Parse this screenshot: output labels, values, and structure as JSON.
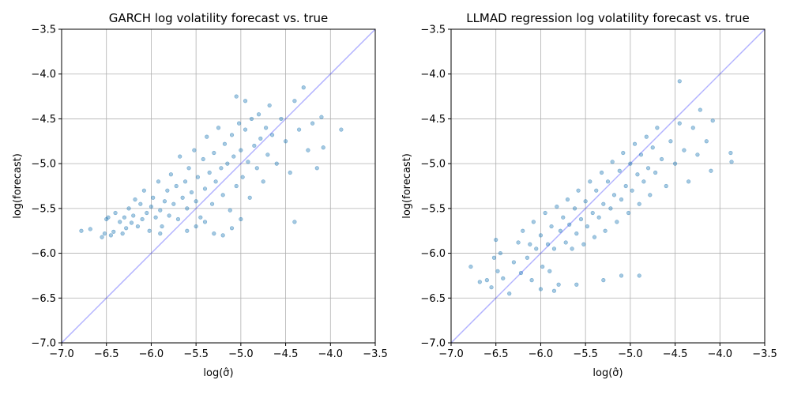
{
  "chart_data": [
    {
      "type": "scatter",
      "title": "GARCH log volatility forecast vs. true",
      "xlabel": "log(σ̂)",
      "ylabel": "log(forecast)",
      "xlim": [
        -7.0,
        -3.5
      ],
      "ylim": [
        -7.0,
        -3.5
      ],
      "xticks": [
        "−7.0",
        "−6.5",
        "−6.0",
        "−5.5",
        "−5.0",
        "−4.5",
        "−4.0",
        "−3.5"
      ],
      "yticks": [
        "−7.0",
        "−6.5",
        "−6.0",
        "−5.5",
        "−5.0",
        "−4.5",
        "−4.0",
        "−3.5"
      ],
      "grid": true,
      "reference_line": "y = x",
      "colors": {
        "points": "#1f77b4",
        "reference_line": "#0000ff"
      },
      "series": [
        {
          "points": [
            [
              -6.78,
              -5.75
            ],
            [
              -6.68,
              -5.73
            ],
            [
              -6.55,
              -5.82
            ],
            [
              -6.52,
              -5.78
            ],
            [
              -6.5,
              -5.62
            ],
            [
              -6.48,
              -5.6
            ],
            [
              -6.45,
              -5.8
            ],
            [
              -6.42,
              -5.76
            ],
            [
              -6.4,
              -5.55
            ],
            [
              -6.35,
              -5.65
            ],
            [
              -6.32,
              -5.78
            ],
            [
              -6.3,
              -5.6
            ],
            [
              -6.28,
              -5.72
            ],
            [
              -6.25,
              -5.5
            ],
            [
              -6.22,
              -5.66
            ],
            [
              -6.2,
              -5.58
            ],
            [
              -6.18,
              -5.4
            ],
            [
              -6.15,
              -5.7
            ],
            [
              -6.12,
              -5.45
            ],
            [
              -6.1,
              -5.62
            ],
            [
              -6.08,
              -5.3
            ],
            [
              -6.05,
              -5.55
            ],
            [
              -6.02,
              -5.75
            ],
            [
              -6.0,
              -5.48
            ],
            [
              -5.98,
              -5.38
            ],
            [
              -5.95,
              -5.6
            ],
            [
              -5.92,
              -5.2
            ],
            [
              -5.9,
              -5.52
            ],
            [
              -5.88,
              -5.7
            ],
            [
              -5.85,
              -5.42
            ],
            [
              -5.82,
              -5.3
            ],
            [
              -5.8,
              -5.58
            ],
            [
              -5.78,
              -5.12
            ],
            [
              -5.75,
              -5.45
            ],
            [
              -5.72,
              -5.25
            ],
            [
              -5.7,
              -5.62
            ],
            [
              -5.68,
              -4.92
            ],
            [
              -5.65,
              -5.38
            ],
            [
              -5.62,
              -5.2
            ],
            [
              -5.6,
              -5.5
            ],
            [
              -5.58,
              -5.05
            ],
            [
              -5.55,
              -5.32
            ],
            [
              -5.52,
              -4.85
            ],
            [
              -5.5,
              -5.42
            ],
            [
              -5.48,
              -5.15
            ],
            [
              -5.45,
              -5.6
            ],
            [
              -5.42,
              -4.95
            ],
            [
              -5.4,
              -5.28
            ],
            [
              -5.38,
              -4.7
            ],
            [
              -5.35,
              -5.1
            ],
            [
              -5.32,
              -5.45
            ],
            [
              -5.3,
              -4.88
            ],
            [
              -5.28,
              -5.2
            ],
            [
              -5.25,
              -4.6
            ],
            [
              -5.22,
              -5.05
            ],
            [
              -5.2,
              -5.35
            ],
            [
              -5.18,
              -4.78
            ],
            [
              -5.15,
              -5.0
            ],
            [
              -5.12,
              -5.52
            ],
            [
              -5.1,
              -4.68
            ],
            [
              -5.08,
              -4.92
            ],
            [
              -5.05,
              -5.25
            ],
            [
              -5.02,
              -4.55
            ],
            [
              -5.0,
              -4.85
            ],
            [
              -4.98,
              -5.15
            ],
            [
              -4.95,
              -4.62
            ],
            [
              -4.92,
              -4.98
            ],
            [
              -4.9,
              -5.38
            ],
            [
              -4.88,
              -4.5
            ],
            [
              -4.85,
              -4.8
            ],
            [
              -4.82,
              -5.05
            ],
            [
              -4.8,
              -4.45
            ],
            [
              -4.78,
              -4.72
            ],
            [
              -4.75,
              -5.2
            ],
            [
              -4.72,
              -4.6
            ],
            [
              -4.7,
              -4.9
            ],
            [
              -4.68,
              -4.35
            ],
            [
              -4.65,
              -4.68
            ],
            [
              -4.6,
              -5.0
            ],
            [
              -4.55,
              -4.5
            ],
            [
              -4.5,
              -4.75
            ],
            [
              -4.45,
              -5.1
            ],
            [
              -4.4,
              -4.3
            ],
            [
              -4.35,
              -4.62
            ],
            [
              -4.3,
              -4.15
            ],
            [
              -4.25,
              -4.85
            ],
            [
              -4.2,
              -4.55
            ],
            [
              -4.15,
              -5.05
            ],
            [
              -4.1,
              -4.48
            ],
            [
              -4.08,
              -4.82
            ],
            [
              -3.88,
              -4.62
            ],
            [
              -5.5,
              -5.7
            ],
            [
              -5.4,
              -5.65
            ],
            [
              -5.2,
              -5.8
            ],
            [
              -5.1,
              -5.72
            ],
            [
              -5.3,
              -5.78
            ],
            [
              -5.0,
              -5.62
            ],
            [
              -4.4,
              -5.65
            ],
            [
              -5.05,
              -4.25
            ],
            [
              -4.95,
              -4.3
            ],
            [
              -5.6,
              -5.75
            ],
            [
              -5.9,
              -5.78
            ]
          ]
        }
      ]
    },
    {
      "type": "scatter",
      "title": "LLMAD regression log volatility forecast vs. true",
      "xlabel": "log(σ̂)",
      "ylabel": "log(forecast)",
      "xlim": [
        -7.0,
        -3.5
      ],
      "ylim": [
        -7.0,
        -3.5
      ],
      "xticks": [
        "−7.0",
        "−6.5",
        "−6.0",
        "−5.5",
        "−5.0",
        "−4.5",
        "−4.0",
        "−3.5"
      ],
      "yticks": [
        "−7.0",
        "−6.5",
        "−6.0",
        "−5.5",
        "−5.0",
        "−4.5",
        "−4.0",
        "−3.5"
      ],
      "grid": true,
      "reference_line": "y = x",
      "colors": {
        "points": "#1f77b4",
        "reference_line": "#0000ff"
      },
      "series": [
        {
          "points": [
            [
              -6.78,
              -6.15
            ],
            [
              -6.68,
              -6.32
            ],
            [
              -6.55,
              -6.38
            ],
            [
              -6.52,
              -6.05
            ],
            [
              -6.5,
              -5.85
            ],
            [
              -6.48,
              -6.2
            ],
            [
              -6.45,
              -6.0
            ],
            [
              -6.42,
              -6.28
            ],
            [
              -6.35,
              -6.45
            ],
            [
              -6.3,
              -6.1
            ],
            [
              -6.25,
              -5.88
            ],
            [
              -6.22,
              -6.22
            ],
            [
              -6.2,
              -5.75
            ],
            [
              -6.15,
              -6.05
            ],
            [
              -6.12,
              -5.9
            ],
            [
              -6.1,
              -6.3
            ],
            [
              -6.08,
              -5.65
            ],
            [
              -6.05,
              -5.95
            ],
            [
              -6.0,
              -5.8
            ],
            [
              -5.98,
              -6.15
            ],
            [
              -5.95,
              -5.55
            ],
            [
              -5.92,
              -5.9
            ],
            [
              -5.9,
              -6.2
            ],
            [
              -5.88,
              -5.7
            ],
            [
              -5.85,
              -5.95
            ],
            [
              -5.82,
              -5.48
            ],
            [
              -5.8,
              -6.35
            ],
            [
              -5.78,
              -5.75
            ],
            [
              -5.75,
              -5.6
            ],
            [
              -5.72,
              -5.88
            ],
            [
              -5.7,
              -5.4
            ],
            [
              -5.68,
              -5.68
            ],
            [
              -5.65,
              -5.95
            ],
            [
              -5.62,
              -5.5
            ],
            [
              -5.6,
              -5.78
            ],
            [
              -5.58,
              -5.3
            ],
            [
              -5.55,
              -5.62
            ],
            [
              -5.52,
              -5.9
            ],
            [
              -5.5,
              -5.42
            ],
            [
              -5.48,
              -5.7
            ],
            [
              -5.45,
              -5.2
            ],
            [
              -5.42,
              -5.55
            ],
            [
              -5.4,
              -5.82
            ],
            [
              -5.38,
              -5.3
            ],
            [
              -5.35,
              -5.6
            ],
            [
              -5.32,
              -5.1
            ],
            [
              -5.3,
              -5.45
            ],
            [
              -5.28,
              -5.75
            ],
            [
              -5.25,
              -5.2
            ],
            [
              -5.22,
              -5.5
            ],
            [
              -5.2,
              -4.98
            ],
            [
              -5.18,
              -5.35
            ],
            [
              -5.15,
              -5.65
            ],
            [
              -5.12,
              -5.08
            ],
            [
              -5.1,
              -5.4
            ],
            [
              -5.08,
              -4.88
            ],
            [
              -5.05,
              -5.25
            ],
            [
              -5.02,
              -5.55
            ],
            [
              -5.0,
              -5.0
            ],
            [
              -4.98,
              -5.3
            ],
            [
              -4.95,
              -4.78
            ],
            [
              -4.92,
              -5.12
            ],
            [
              -4.9,
              -5.45
            ],
            [
              -4.88,
              -4.9
            ],
            [
              -4.85,
              -5.2
            ],
            [
              -4.82,
              -4.7
            ],
            [
              -4.8,
              -5.05
            ],
            [
              -4.78,
              -5.35
            ],
            [
              -4.75,
              -4.82
            ],
            [
              -4.72,
              -5.1
            ],
            [
              -4.7,
              -4.6
            ],
            [
              -4.65,
              -4.95
            ],
            [
              -4.6,
              -5.25
            ],
            [
              -4.55,
              -4.75
            ],
            [
              -4.5,
              -5.0
            ],
            [
              -4.45,
              -4.55
            ],
            [
              -4.4,
              -4.85
            ],
            [
              -4.35,
              -5.2
            ],
            [
              -4.3,
              -4.6
            ],
            [
              -4.25,
              -4.9
            ],
            [
              -4.22,
              -4.4
            ],
            [
              -4.15,
              -4.75
            ],
            [
              -4.1,
              -5.08
            ],
            [
              -4.08,
              -4.52
            ],
            [
              -3.88,
              -4.88
            ],
            [
              -3.87,
              -4.98
            ],
            [
              -4.45,
              -4.08
            ],
            [
              -5.1,
              -6.25
            ],
            [
              -4.9,
              -6.25
            ],
            [
              -5.3,
              -6.3
            ],
            [
              -5.6,
              -6.35
            ],
            [
              -6.0,
              -6.4
            ],
            [
              -5.85,
              -6.42
            ],
            [
              -6.6,
              -6.3
            ]
          ]
        }
      ]
    }
  ]
}
